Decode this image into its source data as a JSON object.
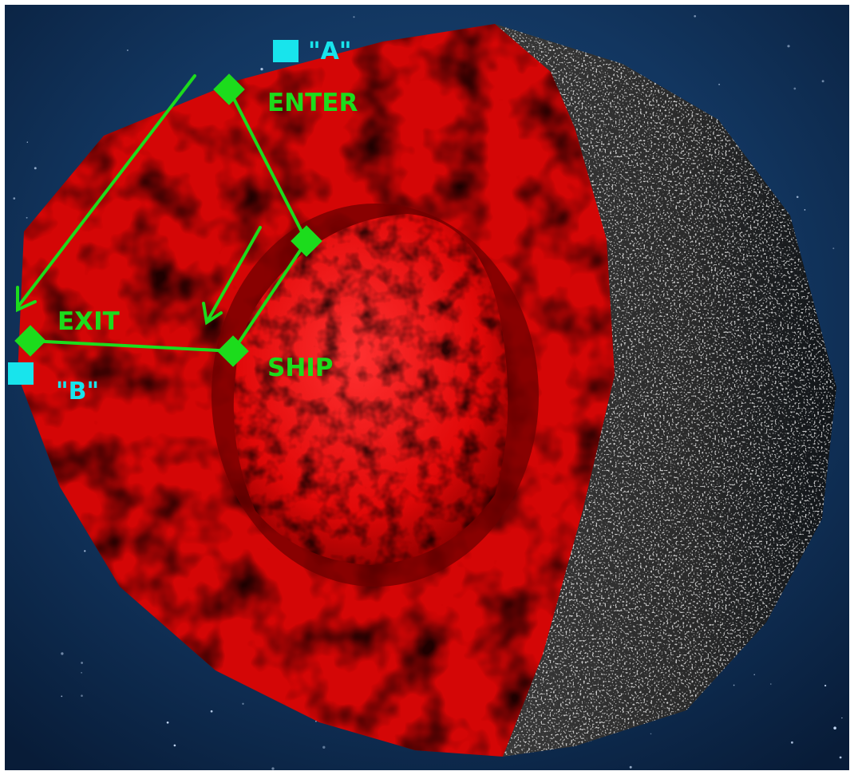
{
  "labels": {
    "point_a": "\"A\"",
    "point_b": "\"B\"",
    "enter": "ENTER",
    "exit": "EXIT",
    "ship": "SHIP"
  },
  "colors": {
    "space": "#0d2a4e",
    "shell_red": "#d40606",
    "core_red": "#f01010",
    "crust": "#2a2a2a",
    "path_green": "#1cdc1c",
    "marker_cyan": "#18e4ec",
    "frame": "#ffffff"
  }
}
